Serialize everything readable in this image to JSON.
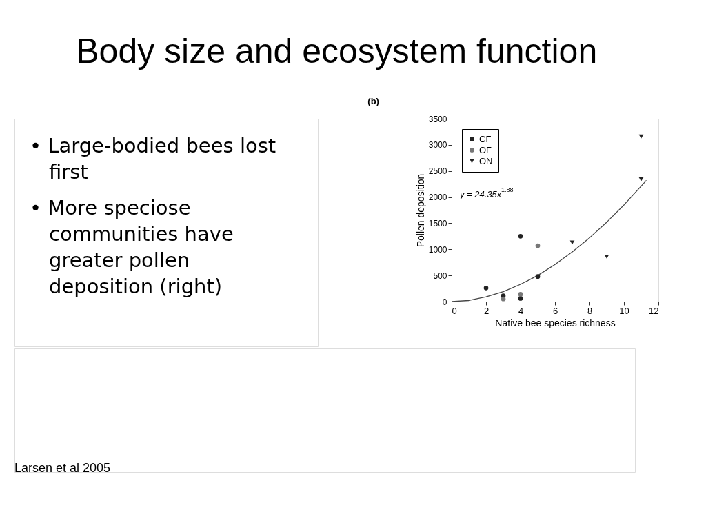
{
  "chart_data": {
    "type": "scatter",
    "title": "Body size and ecosystem function",
    "xlabel": "Native bee species richness",
    "ylabel": "Pollen deposition",
    "annotations": [
      "(b)",
      "• Large-bodied bees lost first",
      "• More speciose communities have greater pollen deposition (right)",
      "y = 24.35x$^{1.88}$",
      "Larsen et al 2005"
    ],
    "series": [
      {
        "name": "CF",
        "color": "#222222",
        "marker": "circle",
        "x": [
          2,
          3,
          4,
          4,
          5
        ],
        "values": [
          260,
          110,
          1250,
          60,
          480
        ]
      },
      {
        "name": "OF",
        "color": "#777777",
        "marker": "circle",
        "x": [
          3,
          4,
          5
        ],
        "values": [
          50,
          140,
          1070
        ]
      },
      {
        "name": "ON",
        "color": "#222222",
        "marker": "triangle",
        "x": [
          7,
          9,
          11,
          11
        ],
        "values": [
          1130,
          860,
          3160,
          2340
        ]
      },
      {
        "type": "line",
        "color": "#444444",
        "marker": "none",
        "x": [
          0,
          1,
          2,
          3,
          4,
          5,
          6,
          7,
          8,
          9,
          10,
          11,
          11.3
        ],
        "values": [
          0,
          20,
          90,
          190,
          330,
          500,
          710,
          950,
          1220,
          1520,
          1850,
          2210,
          2320
        ]
      }
    ],
    "xlim": [
      0,
      12
    ],
    "xticks": [
      0,
      2,
      4,
      6,
      8,
      10,
      12
    ],
    "ylim": [
      0,
      3500
    ],
    "yticks": [
      0,
      500,
      1000,
      1500,
      2000,
      2500,
      3000,
      3500
    ],
    "grid": false,
    "legend": "top left"
  }
}
